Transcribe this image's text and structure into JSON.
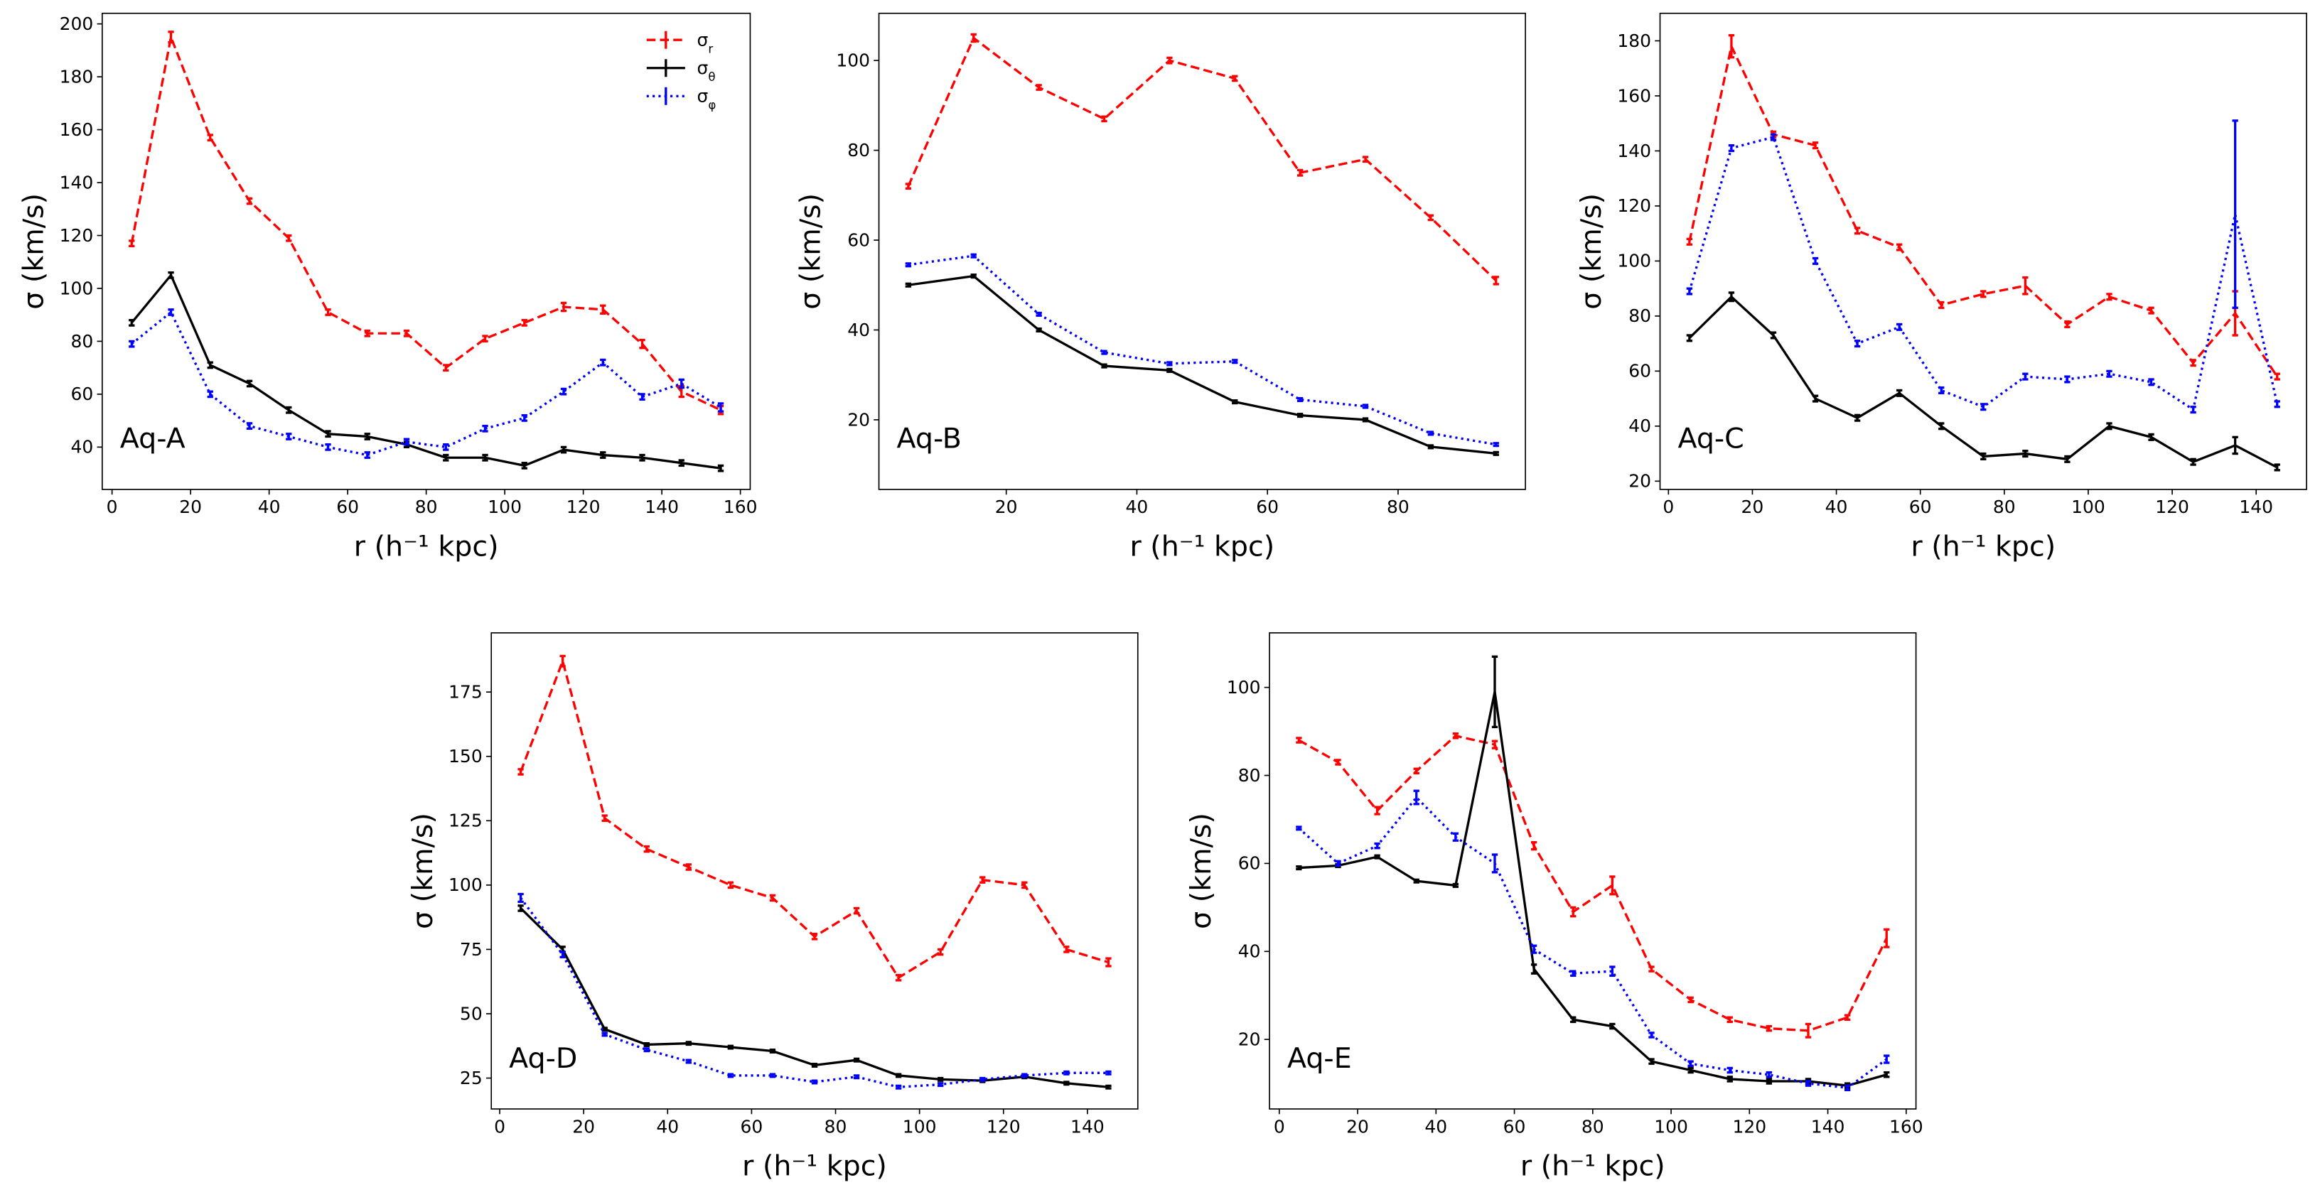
{
  "chart_data": [
    {
      "type": "line",
      "label": "Aq-A",
      "x_label": "r (h⁻¹ kpc)",
      "y_label": "σ (km/s)",
      "legend": "upper right",
      "x": [
        5,
        15,
        25,
        35,
        45,
        55,
        65,
        75,
        85,
        95,
        105,
        115,
        125,
        135,
        145,
        155
      ],
      "xlim": [
        -2.5,
        162.5
      ],
      "xticks": [
        0,
        20,
        40,
        60,
        80,
        100,
        120,
        140,
        160
      ],
      "ylim": [
        24,
        204
      ],
      "yticks": [
        40,
        60,
        80,
        100,
        120,
        140,
        160,
        180,
        200
      ],
      "series": [
        {
          "name": "σr",
          "color": "#ff0000",
          "dash": "dashed",
          "values": [
            117,
            195,
            157,
            133,
            119,
            91,
            83,
            83,
            70,
            81,
            87,
            93,
            92,
            79,
            61,
            54
          ],
          "errors": [
            1,
            2,
            1,
            1,
            1,
            1,
            1,
            1,
            1,
            1,
            1,
            1.5,
            1.5,
            1.5,
            2,
            1.5
          ]
        },
        {
          "name": "σθ",
          "color": "#000000",
          "dash": "solid",
          "values": [
            87,
            105,
            71,
            64,
            54,
            45,
            44,
            41,
            36,
            36,
            33,
            39,
            37,
            36,
            34,
            32
          ],
          "errors": [
            1,
            1,
            1,
            1,
            1,
            1,
            1,
            1,
            1,
            1,
            1,
            1,
            1,
            1,
            1,
            1
          ]
        },
        {
          "name": "σφ",
          "color": "#0000ff",
          "dash": "dotted",
          "values": [
            79,
            91,
            60,
            48,
            44,
            40,
            37,
            42,
            40,
            47,
            51,
            61,
            72,
            59,
            64,
            55
          ],
          "errors": [
            1,
            1,
            1,
            1,
            1,
            1,
            1,
            1,
            1,
            1,
            1,
            1,
            1,
            1,
            1.5,
            1.5
          ]
        }
      ]
    },
    {
      "type": "line",
      "label": "Aq-B",
      "x_label": "r (h⁻¹ kpc)",
      "y_label": "σ (km/s)",
      "x": [
        5,
        15,
        25,
        35,
        45,
        55,
        65,
        75,
        85,
        95
      ],
      "xlim": [
        0.5,
        99.5
      ],
      "xticks": [
        20,
        40,
        60,
        80
      ],
      "ylim": [
        4.5,
        110.5
      ],
      "yticks": [
        20,
        40,
        60,
        80,
        100
      ],
      "series": [
        {
          "color": "#ff0000",
          "dash": "dashed",
          "values": [
            72,
            105,
            94,
            87,
            100,
            96,
            75,
            78,
            65,
            51
          ],
          "errors": [
            0.5,
            0.8,
            0.5,
            0.5,
            0.6,
            0.5,
            0.6,
            0.5,
            0.5,
            0.8
          ]
        },
        {
          "color": "#000000",
          "dash": "solid",
          "values": [
            50,
            52,
            40,
            32,
            31,
            24,
            21,
            20,
            14,
            12.5
          ],
          "errors": [
            0.3,
            0.3,
            0.3,
            0.3,
            0.3,
            0.3,
            0.3,
            0.3,
            0.3,
            0.3
          ]
        },
        {
          "color": "#0000ff",
          "dash": "dotted",
          "values": [
            54.5,
            56.5,
            43.5,
            35,
            32.5,
            33,
            24.5,
            23,
            17,
            14.5
          ],
          "errors": [
            0.3,
            0.3,
            0.3,
            0.3,
            0.3,
            0.3,
            0.3,
            0.3,
            0.3,
            0.3
          ]
        }
      ]
    },
    {
      "type": "line",
      "label": "Aq-C",
      "x_label": "r (h⁻¹ kpc)",
      "y_label": "σ (km/s)",
      "x": [
        5,
        15,
        25,
        35,
        45,
        55,
        65,
        75,
        85,
        95,
        105,
        115,
        125,
        135,
        145
      ],
      "xlim": [
        -2,
        152
      ],
      "xticks": [
        0,
        20,
        40,
        60,
        80,
        100,
        120,
        140
      ],
      "ylim": [
        17,
        190
      ],
      "yticks": [
        20,
        40,
        60,
        80,
        100,
        120,
        140,
        160,
        180
      ],
      "series": [
        {
          "color": "#ff0000",
          "dash": "dashed",
          "values": [
            107,
            178,
            146,
            142,
            111,
            105,
            84,
            88,
            91,
            77,
            87,
            82,
            63,
            81,
            58
          ],
          "errors": [
            1,
            4,
            1,
            1,
            1,
            1,
            1,
            1,
            3,
            1,
            1,
            1,
            1,
            8,
            1
          ]
        },
        {
          "color": "#000000",
          "dash": "solid",
          "values": [
            72,
            87,
            73,
            50,
            43,
            52,
            40,
            29,
            30,
            28,
            40,
            36,
            27,
            33,
            25
          ],
          "errors": [
            1,
            1.5,
            1,
            1,
            1,
            1,
            1,
            1,
            1,
            1,
            1,
            1,
            1,
            3,
            1
          ]
        },
        {
          "color": "#0000ff",
          "dash": "dotted",
          "values": [
            89,
            141,
            145,
            100,
            70,
            76,
            53,
            47,
            58,
            57,
            59,
            56,
            46,
            117,
            48
          ],
          "errors": [
            1,
            1,
            1,
            1,
            1,
            1,
            1,
            1,
            1,
            1,
            1,
            1,
            1,
            34,
            1
          ]
        }
      ]
    },
    {
      "type": "line",
      "label": "Aq-D",
      "x_label": "r (h⁻¹ kpc)",
      "y_label": "σ (km/s)",
      "x": [
        5,
        15,
        25,
        35,
        45,
        55,
        65,
        75,
        85,
        95,
        105,
        115,
        125,
        135,
        145
      ],
      "xlim": [
        -2,
        152
      ],
      "xticks": [
        0,
        20,
        40,
        60,
        80,
        100,
        120,
        140
      ],
      "ylim": [
        13,
        198
      ],
      "yticks": [
        25,
        50,
        75,
        100,
        125,
        150,
        175
      ],
      "series": [
        {
          "color": "#ff0000",
          "dash": "dashed",
          "values": [
            144,
            187,
            126,
            114,
            107,
            100,
            95,
            80,
            90,
            64,
            74,
            102,
            100,
            75,
            70
          ],
          "errors": [
            1,
            2,
            1,
            1,
            1,
            1,
            1,
            1,
            1,
            1,
            1,
            1,
            1,
            1,
            1.5
          ]
        },
        {
          "color": "#000000",
          "dash": "solid",
          "values": [
            91,
            75,
            44,
            38,
            38.5,
            37,
            35.5,
            30,
            32,
            26,
            24.5,
            24,
            25.5,
            23,
            21.5
          ],
          "errors": [
            1,
            1,
            0.5,
            0.5,
            0.5,
            0.5,
            0.5,
            0.5,
            0.5,
            0.5,
            0.5,
            0.5,
            0.5,
            0.5,
            0.5
          ]
        },
        {
          "color": "#0000ff",
          "dash": "dotted",
          "values": [
            95,
            73,
            42,
            36,
            31.5,
            26,
            26,
            23.5,
            25.5,
            21.5,
            22.5,
            24.5,
            26,
            27,
            27
          ],
          "errors": [
            1.5,
            1,
            0.5,
            0.5,
            0.5,
            0.5,
            0.5,
            0.5,
            0.5,
            0.5,
            0.5,
            0.5,
            0.5,
            0.5,
            0.5
          ]
        }
      ]
    },
    {
      "type": "line",
      "label": "Aq-E",
      "x_label": "r (h⁻¹ kpc)",
      "y_label": "σ (km/s)",
      "x": [
        5,
        15,
        25,
        35,
        45,
        55,
        65,
        75,
        85,
        95,
        105,
        115,
        125,
        135,
        145,
        155
      ],
      "xlim": [
        -2.5,
        162.5
      ],
      "xticks": [
        0,
        20,
        40,
        60,
        80,
        100,
        120,
        140,
        160
      ],
      "ylim": [
        4.2,
        112.4
      ],
      "yticks": [
        20,
        40,
        60,
        80,
        100
      ],
      "series": [
        {
          "color": "#ff0000",
          "dash": "dashed",
          "values": [
            88,
            83,
            72,
            81,
            89,
            87,
            64,
            49,
            55,
            36,
            29,
            24.5,
            22.5,
            22,
            25,
            43
          ],
          "errors": [
            0.5,
            0.5,
            0.8,
            0.5,
            0.5,
            0.8,
            0.8,
            1,
            2,
            0.5,
            0.5,
            0.5,
            0.5,
            1.5,
            0.5,
            2
          ]
        },
        {
          "color": "#000000",
          "dash": "solid",
          "values": [
            59,
            59.5,
            61.5,
            56,
            55,
            99,
            36,
            24.5,
            23,
            15,
            13,
            11,
            10.5,
            10.5,
            9.5,
            12
          ],
          "errors": [
            0.3,
            0.3,
            0.3,
            0.3,
            0.3,
            8,
            1,
            0.5,
            0.5,
            0.5,
            0.5,
            0.5,
            0.5,
            0.5,
            0.5,
            0.5
          ]
        },
        {
          "color": "#0000ff",
          "dash": "dotted",
          "values": [
            68,
            60,
            64,
            75,
            66,
            60,
            40.5,
            35,
            35.5,
            21,
            14.5,
            13,
            12,
            10,
            9,
            15.5
          ],
          "errors": [
            0.3,
            0.5,
            0.5,
            1.5,
            0.8,
            2,
            0.8,
            0.5,
            1,
            0.5,
            0.5,
            0.5,
            0.5,
            0.5,
            0.5,
            0.8
          ]
        }
      ]
    }
  ]
}
